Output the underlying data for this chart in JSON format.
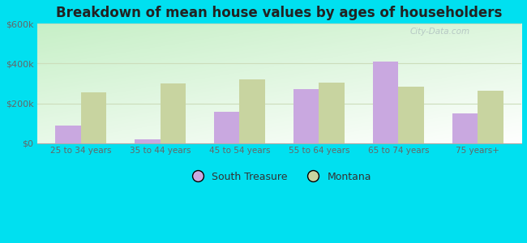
{
  "title": "Breakdown of mean house values by ages of householders",
  "categories": [
    "25 to 34 years",
    "35 to 44 years",
    "45 to 54 years",
    "55 to 64 years",
    "65 to 74 years",
    "75 years+"
  ],
  "south_treasure": [
    90000,
    20000,
    160000,
    270000,
    410000,
    150000
  ],
  "montana": [
    255000,
    300000,
    320000,
    305000,
    285000,
    265000
  ],
  "south_treasure_color": "#c9a8e0",
  "montana_color": "#c8d4a0",
  "ylim": [
    0,
    600000
  ],
  "ytick_labels": [
    "$0",
    "$200k",
    "$400k",
    "$600k"
  ],
  "ytick_vals": [
    0,
    200000,
    400000,
    600000
  ],
  "outer_bg": "#00e0f0",
  "bar_width": 0.32,
  "legend_south": "South Treasure",
  "legend_montana": "Montana",
  "watermark": "City-Data.com",
  "grid_color": "#ccddbb",
  "bg_grad_topleft": "#c8e8c0",
  "bg_grad_bottomright": "#f0faf0"
}
